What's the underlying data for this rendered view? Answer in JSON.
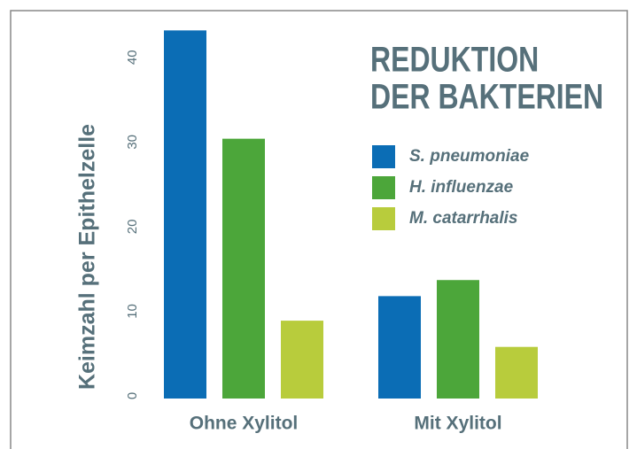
{
  "chart_data": {
    "type": "bar",
    "title": [
      "REDUKTION",
      "DER BAKTERIEN"
    ],
    "y_label": "Keimzahl per Epithelzelle",
    "categories": [
      "Ohne Xylitol",
      "Mit Xylitol"
    ],
    "series": [
      {
        "name": "S. pneumoniae",
        "color": "#0b6db5",
        "values": [
          43.5,
          12.1
        ]
      },
      {
        "name": "H. influenzae",
        "color": "#4ca63a",
        "values": [
          30.7,
          14.0
        ]
      },
      {
        "name": "M. catarrhalis",
        "color": "#b8cc3c",
        "values": [
          9.2,
          6.1
        ]
      }
    ],
    "ylim": [
      0,
      45
    ],
    "yticks": [
      0,
      10,
      20,
      30,
      40
    ],
    "grid": false
  }
}
